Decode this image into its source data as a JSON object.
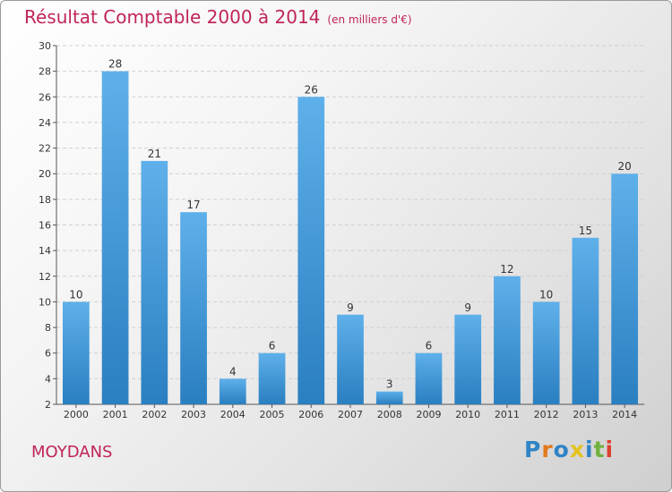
{
  "header": {
    "title": "Résultat Comptable 2000 à 2014",
    "subtitle": "(en milliers d'€)"
  },
  "footer": {
    "commune": "MOYDANS",
    "brand": "Proxiti"
  },
  "colors": {
    "accent": "#c0245a",
    "bar_light": "#5fb0ea",
    "bar_dark": "#2a7fc1",
    "grid": "#cfcfcf",
    "axis": "#555555",
    "brand_letters": [
      "#2f84c6",
      "#e27a1b",
      "#2f84c6",
      "#e3c21f",
      "#2f84c6",
      "#6fb23c",
      "#d9422f"
    ]
  },
  "chart_data": {
    "type": "bar",
    "title": "Résultat Comptable 2000 à 2014",
    "subtitle": "(en milliers d'€)",
    "xlabel": "",
    "ylabel": "",
    "categories": [
      "2000",
      "2001",
      "2002",
      "2003",
      "2004",
      "2005",
      "2006",
      "2007",
      "2008",
      "2009",
      "2010",
      "2011",
      "2012",
      "2013",
      "2014"
    ],
    "values": [
      10,
      28,
      21,
      17,
      4,
      6,
      26,
      9,
      3,
      6,
      9,
      12,
      10,
      15,
      20
    ],
    "ylim": [
      2,
      30
    ],
    "yticks": [
      2,
      4,
      6,
      8,
      10,
      12,
      14,
      16,
      18,
      20,
      22,
      24,
      26,
      28,
      30
    ],
    "grid": true,
    "data_labels": true
  }
}
